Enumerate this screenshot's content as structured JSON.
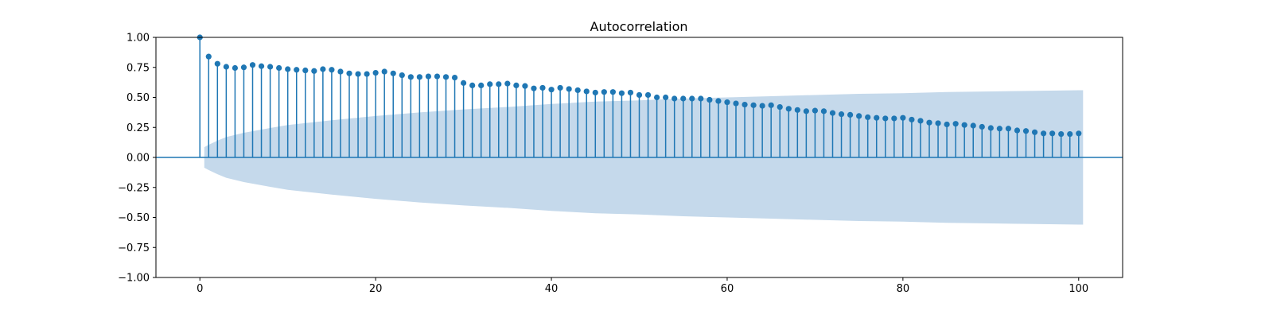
{
  "chart_data": {
    "type": "stem",
    "title": "Autocorrelation",
    "xlabel": "",
    "ylabel": "",
    "xlim": [
      -5,
      105
    ],
    "ylim": [
      -1.0,
      1.0
    ],
    "x_ticks": [
      0,
      20,
      40,
      60,
      80,
      100
    ],
    "y_ticks": [
      -1.0,
      -0.75,
      -0.5,
      -0.25,
      0.0,
      0.25,
      0.5,
      0.75,
      1.0
    ],
    "x_tick_labels": [
      "0",
      "20",
      "40",
      "60",
      "80",
      "100"
    ],
    "y_tick_labels": [
      "−1.00",
      "−0.75",
      "−0.50",
      "−0.25",
      "0.00",
      "0.25",
      "0.50",
      "0.75",
      "1.00"
    ],
    "grid": false,
    "legend": "none",
    "series": [
      {
        "x": [
          0,
          1,
          2,
          3,
          4,
          5,
          6,
          7,
          8,
          9,
          10,
          11,
          12,
          13,
          14,
          15,
          16,
          17,
          18,
          19,
          20,
          21,
          22,
          23,
          24,
          25,
          26,
          27,
          28,
          29,
          30,
          31,
          32,
          33,
          34,
          35,
          36,
          37,
          38,
          39,
          40,
          41,
          42,
          43,
          44,
          45,
          46,
          47,
          48,
          49,
          50,
          51,
          52,
          53,
          54,
          55,
          56,
          57,
          58,
          59,
          60,
          61,
          62,
          63,
          64,
          65,
          66,
          67,
          68,
          69,
          70,
          71,
          72,
          73,
          74,
          75,
          76,
          77,
          78,
          79,
          80,
          81,
          82,
          83,
          84,
          85,
          86,
          87,
          88,
          89,
          90,
          91,
          92,
          93,
          94,
          95,
          96,
          97,
          98,
          99,
          100
        ],
        "y": [
          1.0,
          0.84,
          0.78,
          0.755,
          0.745,
          0.75,
          0.77,
          0.76,
          0.755,
          0.745,
          0.735,
          0.73,
          0.725,
          0.72,
          0.735,
          0.73,
          0.715,
          0.7,
          0.695,
          0.695,
          0.705,
          0.715,
          0.7,
          0.685,
          0.67,
          0.67,
          0.675,
          0.675,
          0.67,
          0.665,
          0.62,
          0.6,
          0.6,
          0.61,
          0.61,
          0.615,
          0.6,
          0.595,
          0.575,
          0.58,
          0.565,
          0.58,
          0.57,
          0.56,
          0.55,
          0.54,
          0.545,
          0.545,
          0.535,
          0.54,
          0.52,
          0.52,
          0.5,
          0.5,
          0.49,
          0.49,
          0.49,
          0.49,
          0.48,
          0.47,
          0.46,
          0.45,
          0.44,
          0.435,
          0.43,
          0.435,
          0.42,
          0.405,
          0.395,
          0.385,
          0.39,
          0.385,
          0.37,
          0.36,
          0.355,
          0.345,
          0.335,
          0.33,
          0.325,
          0.325,
          0.33,
          0.315,
          0.305,
          0.29,
          0.285,
          0.275,
          0.28,
          0.27,
          0.265,
          0.255,
          0.245,
          0.24,
          0.24,
          0.225,
          0.22,
          0.21,
          0.2,
          0.2,
          0.195,
          0.195,
          0.2
        ]
      }
    ],
    "confidence_band": {
      "x": [
        0.5,
        1,
        2,
        3,
        5,
        8,
        10,
        15,
        20,
        25,
        30,
        35,
        40,
        45,
        50,
        55,
        60,
        65,
        70,
        75,
        80,
        85,
        90,
        95,
        100,
        100.5
      ],
      "half_width": [
        0.085,
        0.105,
        0.14,
        0.17,
        0.205,
        0.245,
        0.27,
        0.31,
        0.345,
        0.375,
        0.4,
        0.42,
        0.445,
        0.465,
        0.475,
        0.49,
        0.5,
        0.51,
        0.52,
        0.53,
        0.535,
        0.545,
        0.55,
        0.555,
        0.56,
        0.56
      ]
    },
    "colors": {
      "marker": "#1f77b4",
      "band": "#c5d9eb",
      "frame": "#000000"
    }
  }
}
